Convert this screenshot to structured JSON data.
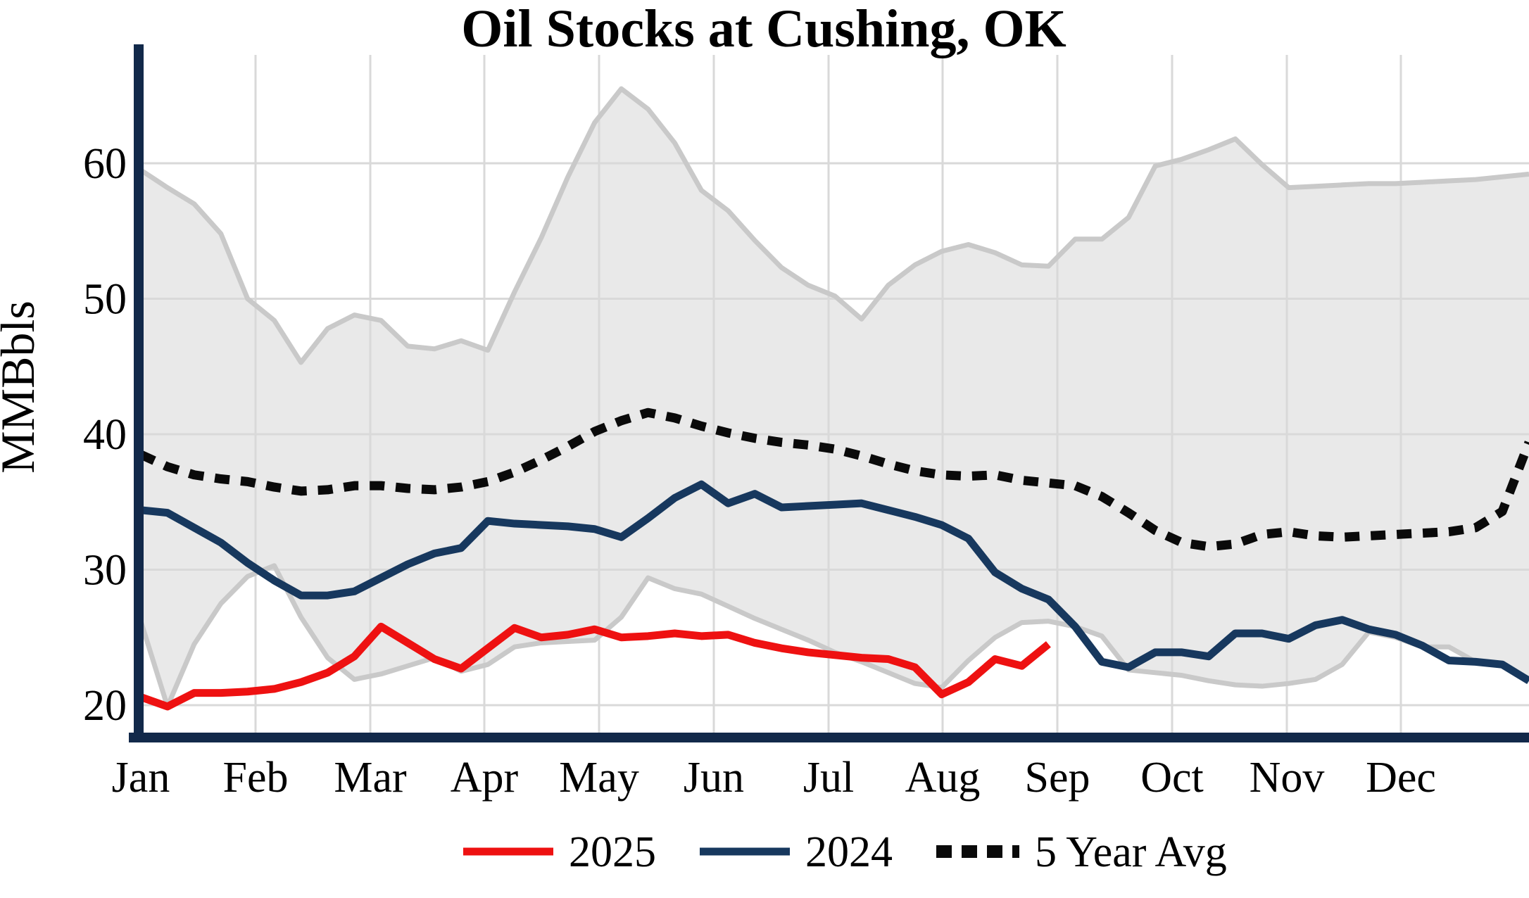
{
  "title": "Oil Stocks at Cushing, OK",
  "y_axis": {
    "label": "MMBbls",
    "ticks": [
      20,
      30,
      40,
      50,
      60
    ]
  },
  "x_axis": {
    "months": [
      "Jan",
      "Feb",
      "Mar",
      "Apr",
      "May",
      "Jun",
      "Jul",
      "Aug",
      "Sep",
      "Oct",
      "Nov",
      "Dec"
    ]
  },
  "legend": [
    {
      "label": "2025",
      "style": "solid",
      "color": "#ee1111"
    },
    {
      "label": "2024",
      "style": "solid",
      "color": "#17385e"
    },
    {
      "label": "5 Year Avg",
      "style": "dotted",
      "color": "#0a0a0a"
    }
  ],
  "colors": {
    "series_2025": "#ee1111",
    "series_2024": "#17385e",
    "five_year_avg": "#0a0a0a",
    "band_fill": "#e9e9e9",
    "band_edge": "#c9c9c9",
    "gridline": "#d9d9d9",
    "spine": "#12294a",
    "background": "#ffffff"
  },
  "chart_data": {
    "type": "line",
    "title": "Oil Stocks at Cushing, OK",
    "xlabel": "",
    "ylabel": "MMBbls",
    "ylim": [
      17.8,
      68.8
    ],
    "grid": true,
    "legend_position": "bottom-center",
    "x_unit": "weekly points, Jan through Dec",
    "categories": [
      "Jan",
      "Feb",
      "Mar",
      "Apr",
      "May",
      "Jun",
      "Jul",
      "Aug",
      "Sep",
      "Oct",
      "Nov",
      "Dec"
    ],
    "band": {
      "name": "5 Year Range",
      "max": [
        59.5,
        58.2,
        57.0,
        54.8,
        50.0,
        48.4,
        45.3,
        47.8,
        48.8,
        48.4,
        46.5,
        46.3,
        46.9,
        46.2,
        50.5,
        54.5,
        59.0,
        63.0,
        65.5,
        64.0,
        61.5,
        58.0,
        56.5,
        54.3,
        52.3,
        51.0,
        50.2,
        48.5,
        51.0,
        52.5,
        53.5,
        54.0,
        53.4,
        52.5,
        52.4,
        54.4,
        54.4,
        56.0,
        59.8,
        60.3,
        61.0,
        61.8,
        59.9,
        58.2,
        58.3,
        58.4,
        58.5,
        58.5,
        58.6,
        58.7,
        58.8,
        59.0,
        59.2
      ],
      "min": [
        26.2,
        19.9,
        24.5,
        27.5,
        29.5,
        30.3,
        26.5,
        23.5,
        21.9,
        22.3,
        22.9,
        23.5,
        22.5,
        23.0,
        24.3,
        24.6,
        24.7,
        24.8,
        26.5,
        29.4,
        28.6,
        28.2,
        27.3,
        26.4,
        25.6,
        24.8,
        23.9,
        23.2,
        22.4,
        21.6,
        21.3,
        23.3,
        25.0,
        26.1,
        26.2,
        25.8,
        25.1,
        22.6,
        22.4,
        22.2,
        21.8,
        21.5,
        21.4,
        21.6,
        21.9,
        23.0,
        25.4,
        25.0,
        24.3,
        24.3,
        23.2,
        23.1,
        21.8
      ]
    },
    "series": [
      {
        "name": "2025",
        "color": "#ee1111",
        "style": "solid",
        "values": [
          20.6,
          19.9,
          20.9,
          20.9,
          21.0,
          21.2,
          21.7,
          22.4,
          23.6,
          25.8,
          24.6,
          23.4,
          22.7,
          24.2,
          25.7,
          25.0,
          25.2,
          25.6,
          25.0,
          25.1,
          25.3,
          25.1,
          25.2,
          24.6,
          24.2,
          23.9,
          23.7,
          23.5,
          23.4,
          22.8,
          20.8,
          21.7,
          23.4,
          22.9,
          24.5
        ]
      },
      {
        "name": "2024",
        "color": "#17385e",
        "style": "solid",
        "values": [
          34.4,
          34.2,
          33.1,
          32.0,
          30.5,
          29.2,
          28.1,
          28.1,
          28.4,
          29.4,
          30.4,
          31.2,
          31.6,
          33.6,
          33.4,
          33.3,
          33.2,
          33.0,
          32.4,
          33.8,
          35.3,
          36.3,
          34.9,
          35.6,
          34.6,
          34.7,
          34.8,
          34.9,
          34.4,
          33.9,
          33.3,
          32.3,
          29.8,
          28.6,
          27.8,
          25.8,
          23.2,
          22.8,
          23.9,
          23.9,
          23.6,
          25.3,
          25.3,
          24.9,
          25.9,
          26.3,
          25.6,
          25.2,
          24.4,
          23.3,
          23.2,
          23.0,
          21.8
        ]
      },
      {
        "name": "5 Year Avg",
        "color": "#0a0a0a",
        "style": "dotted",
        "values": [
          38.5,
          37.6,
          37.0,
          36.7,
          36.5,
          36.1,
          35.8,
          35.9,
          36.2,
          36.2,
          36.0,
          35.9,
          36.1,
          36.5,
          37.2,
          38.1,
          39.1,
          40.2,
          41.0,
          41.6,
          41.2,
          40.6,
          40.1,
          39.7,
          39.4,
          39.2,
          38.9,
          38.4,
          37.8,
          37.3,
          37.0,
          36.9,
          37.0,
          36.6,
          36.4,
          36.2,
          35.4,
          34.2,
          32.9,
          32.0,
          31.7,
          31.9,
          32.6,
          32.8,
          32.5,
          32.4,
          32.5,
          32.6,
          32.7,
          32.8,
          33.1,
          34.3,
          39.4
        ]
      }
    ]
  }
}
